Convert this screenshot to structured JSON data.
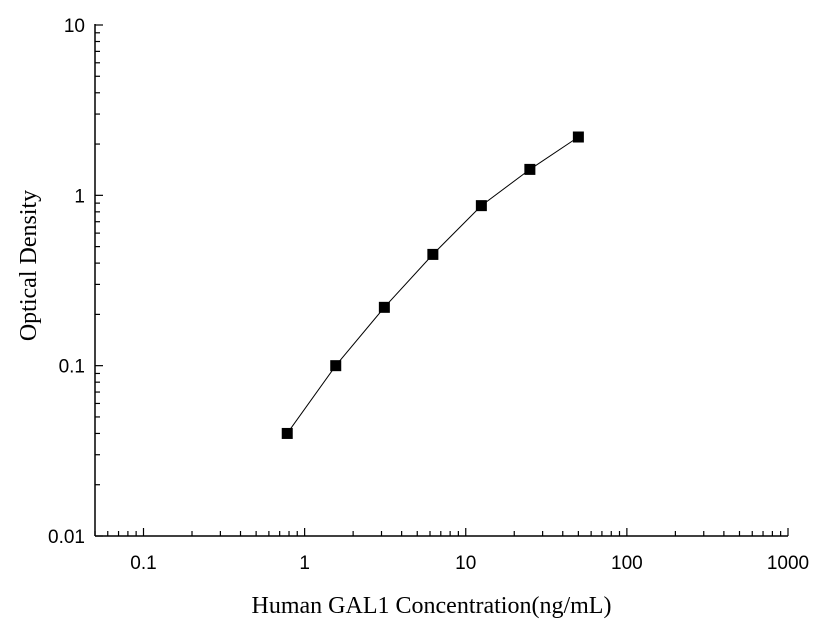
{
  "chart_data": {
    "type": "line",
    "title": "",
    "xlabel": "Human GAL1 Concentration(ng/mL)",
    "ylabel": "Optical Density",
    "xscale": "log",
    "yscale": "log",
    "xlim": [
      0.05,
      1000
    ],
    "ylim": [
      0.01,
      10
    ],
    "x_ticks": [
      "0.1",
      "1",
      "10",
      "100",
      "1000"
    ],
    "y_ticks": [
      "0.01",
      "0.1",
      "1",
      "10"
    ],
    "grid": false,
    "legend": "none",
    "marker": "square",
    "line_color": "#000000",
    "series": [
      {
        "x": [
          0.78,
          1.56,
          3.125,
          6.25,
          12.5,
          25,
          50
        ],
        "y": [
          0.04,
          0.1,
          0.22,
          0.45,
          0.87,
          1.42,
          2.2
        ]
      }
    ]
  }
}
